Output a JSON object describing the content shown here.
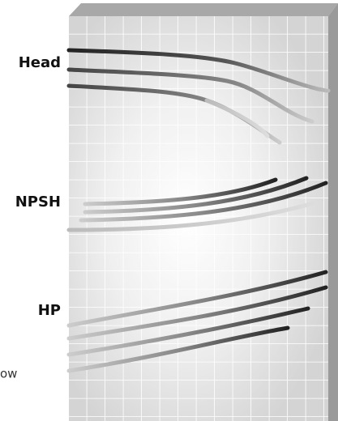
{
  "labels": {
    "head": "Head",
    "npsh": "NPSH",
    "hp": "HP",
    "flow": "ow"
  }
}
